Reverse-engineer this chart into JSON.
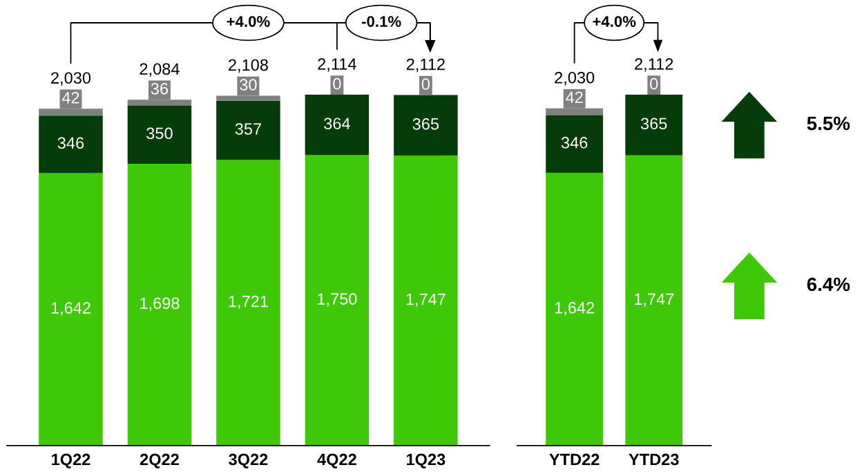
{
  "chart_data": [
    {
      "type": "bar",
      "stacked": true,
      "tick_labels": "x",
      "categories": [
        "1Q22",
        "2Q22",
        "3Q22",
        "4Q22",
        "1Q23"
      ],
      "series": [
        {
          "color": "#3ec808",
          "values": [
            1642,
            1698,
            1721,
            1750,
            1747
          ],
          "value_labels": [
            "1,642",
            "1,698",
            "1,721",
            "1,750",
            "1,747"
          ]
        },
        {
          "color": "#063c09",
          "values": [
            346,
            350,
            357,
            364,
            365
          ],
          "value_labels": [
            "346",
            "350",
            "357",
            "364",
            "365"
          ]
        },
        {
          "color": "#808080",
          "values": [
            42,
            36,
            30,
            0,
            0
          ],
          "value_labels": [
            "42",
            "36",
            "30",
            "0",
            "0"
          ]
        }
      ],
      "totals": [
        "2,030",
        "2,084",
        "2,108",
        "2,114",
        "2,112"
      ],
      "annotations": [
        "+4.0%",
        "-0.1%"
      ]
    },
    {
      "type": "bar",
      "stacked": true,
      "tick_labels": "x",
      "categories": [
        "YTD22",
        "YTD23"
      ],
      "series": [
        {
          "color": "#3ec808",
          "values": [
            1642,
            1747
          ],
          "value_labels": [
            "1,642",
            "1,747"
          ]
        },
        {
          "color": "#063c09",
          "values": [
            346,
            365
          ],
          "value_labels": [
            "346",
            "365"
          ]
        },
        {
          "color": "#808080",
          "values": [
            42,
            0
          ],
          "value_labels": [
            "42",
            "0"
          ]
        }
      ],
      "totals": [
        "2,030",
        "2,112"
      ],
      "annotations": [
        "+4.0%",
        "5.5%",
        "6.4%"
      ]
    }
  ]
}
